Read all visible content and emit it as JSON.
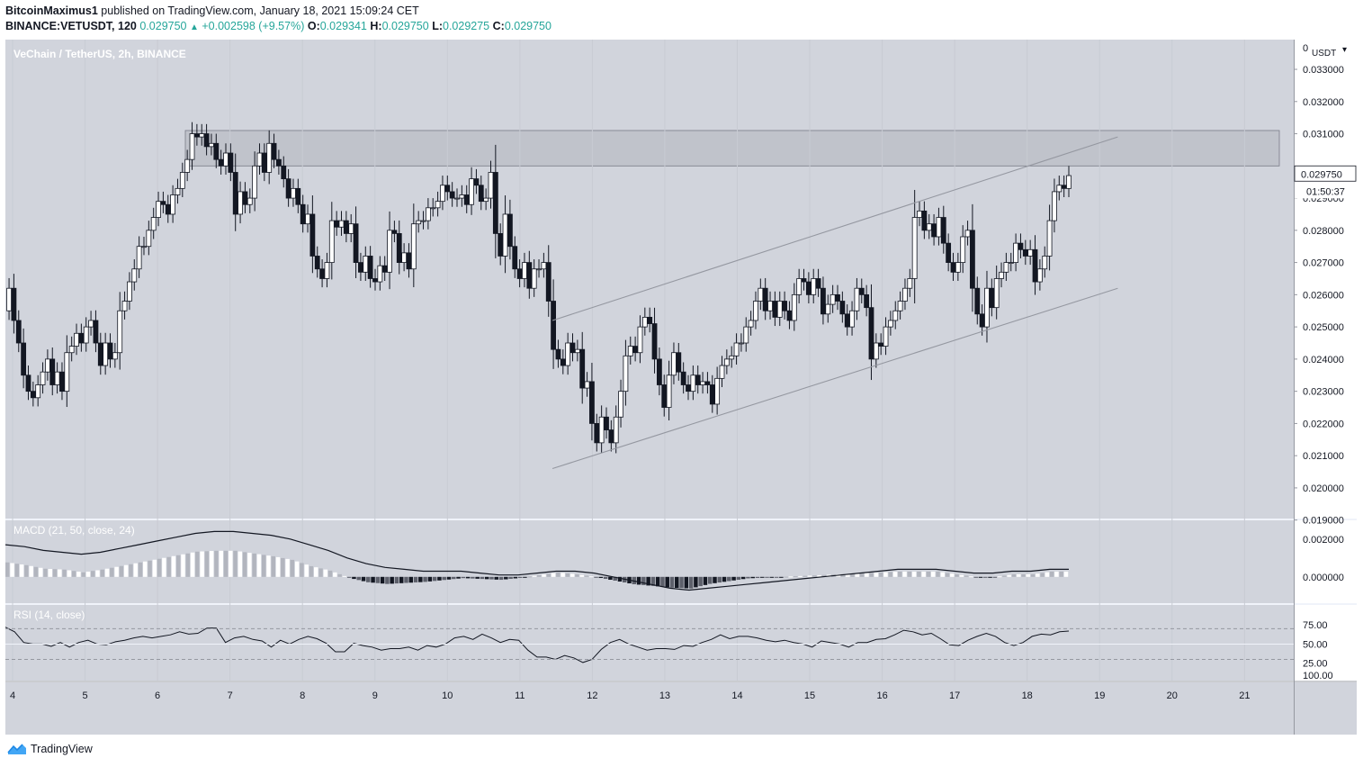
{
  "header": {
    "author": "BitcoinMaximus1",
    "published_text": "published on TradingView.com, January 18, 2021 15:09:24 CET",
    "symbol": "BINANCE:VETUSDT, 120",
    "last": "0.029750",
    "change": "+0.002598 (+9.57%)",
    "o_label": "O:",
    "o_value": "0.029341",
    "h_label": "H:",
    "h_value": "0.029750",
    "l_label": "L:",
    "l_value": "0.029275",
    "c_label": "C:",
    "c_value": "0.029750"
  },
  "chart_title": "VeChain / TetherUS, 2h, BINANCE",
  "price_axis": {
    "currency": "USDT",
    "top_label": "0",
    "ticks": [
      "0.033000",
      "0.032000",
      "0.031000",
      "0.029000",
      "0.028000",
      "0.027000",
      "0.026000",
      "0.025000",
      "0.024000",
      "0.023000",
      "0.022000",
      "0.021000",
      "0.020000",
      "0.019000"
    ],
    "last_price_label": "0.029750",
    "countdown_label": "01:50:37"
  },
  "footer": {
    "brand": "TradingView"
  },
  "colors": {
    "background": "#d1d4dc",
    "candle_up_fill": "#ffffff",
    "candle_down_fill": "#131722",
    "zone_fill": "#b2b5be",
    "channel": "#9598a1"
  },
  "chart_data": [
    {
      "type": "candlestick",
      "title": "VeChain / TetherUS, 2h, BINANCE",
      "x_tick_labels": [
        "4",
        "5",
        "6",
        "7",
        "8",
        "9",
        "10",
        "11",
        "12",
        "13",
        "14",
        "15",
        "16",
        "17",
        "18",
        "19",
        "20",
        "21"
      ],
      "y_range": [
        0.0186,
        0.0337
      ],
      "ohlc_closes": [
        0.0258,
        0.0262,
        0.0255,
        0.0262,
        0.0252,
        0.0245,
        0.0235,
        0.023,
        0.0228,
        0.0232,
        0.0236,
        0.024,
        0.0232,
        0.0236,
        0.023,
        0.0242,
        0.0244,
        0.0248,
        0.0245,
        0.025,
        0.0252,
        0.0245,
        0.0238,
        0.0245,
        0.024,
        0.0242,
        0.0255,
        0.0258,
        0.0264,
        0.0268,
        0.0275,
        0.0275,
        0.028,
        0.0284,
        0.0289,
        0.0288,
        0.0285,
        0.0291,
        0.0293,
        0.0298,
        0.0302,
        0.031,
        0.0309,
        0.031,
        0.0306,
        0.0307,
        0.0302,
        0.03,
        0.0304,
        0.0298,
        0.0285,
        0.0292,
        0.0288,
        0.029,
        0.03,
        0.0304,
        0.0298,
        0.0307,
        0.0302,
        0.03,
        0.0296,
        0.029,
        0.0293,
        0.0288,
        0.0282,
        0.0285,
        0.0272,
        0.0268,
        0.0265,
        0.027,
        0.0283,
        0.0281,
        0.0283,
        0.0279,
        0.0282,
        0.027,
        0.0267,
        0.0272,
        0.0265,
        0.0264,
        0.0269,
        0.0267,
        0.028,
        0.0279,
        0.027,
        0.0273,
        0.0268,
        0.0282,
        0.0283,
        0.0283,
        0.0287,
        0.0287,
        0.0289,
        0.0294,
        0.0292,
        0.029,
        0.029,
        0.0291,
        0.0288,
        0.0296,
        0.0294,
        0.0289,
        0.029,
        0.0298,
        0.0279,
        0.0272,
        0.0285,
        0.0275,
        0.0268,
        0.0265,
        0.027,
        0.0262,
        0.0268,
        0.0268,
        0.027,
        0.0258,
        0.0243,
        0.024,
        0.0238,
        0.0245,
        0.0242,
        0.0243,
        0.0231,
        0.0233,
        0.022,
        0.0214,
        0.0222,
        0.0218,
        0.0214,
        0.0222,
        0.023,
        0.0241,
        0.0244,
        0.0242,
        0.025,
        0.0253,
        0.0251,
        0.024,
        0.0232,
        0.0225,
        0.0235,
        0.0242,
        0.0236,
        0.0232,
        0.023,
        0.0235,
        0.0232,
        0.0233,
        0.0232,
        0.0226,
        0.0234,
        0.0238,
        0.024,
        0.0241,
        0.0245,
        0.0245,
        0.025,
        0.0252,
        0.0258,
        0.0262,
        0.0255,
        0.0258,
        0.0253,
        0.0258,
        0.0255,
        0.0252,
        0.026,
        0.0265,
        0.0264,
        0.026,
        0.0265,
        0.0262,
        0.0254,
        0.0257,
        0.026,
        0.0258,
        0.0254,
        0.025,
        0.0255,
        0.0262,
        0.026,
        0.0256,
        0.024,
        0.0245,
        0.0244,
        0.025,
        0.0252,
        0.0255,
        0.0258,
        0.0262,
        0.0265,
        0.0284,
        0.0286,
        0.028,
        0.0282,
        0.0278,
        0.0284,
        0.0276,
        0.027,
        0.0267,
        0.027,
        0.0278,
        0.028,
        0.0262,
        0.0254,
        0.025,
        0.0262,
        0.0256,
        0.0265,
        0.0267,
        0.027,
        0.027,
        0.0276,
        0.0274,
        0.0272,
        0.0274,
        0.0264,
        0.0268,
        0.0272,
        0.0283,
        0.0292,
        0.0294,
        0.0293,
        0.0297
      ],
      "resistance_zone": [
        0.03,
        0.0311
      ],
      "channel_upper": [
        [
          11.45,
          0.0252
        ],
        [
          19.25,
          0.0309
        ]
      ],
      "channel_lower": [
        [
          11.45,
          0.0206
        ],
        [
          19.25,
          0.0262
        ]
      ]
    },
    {
      "type": "line",
      "title": "MACD (21, 50, close, 24)",
      "ticks": [
        "0.002000",
        "0.000000"
      ],
      "y_range": [
        -0.0012,
        0.0028
      ],
      "macd": [
        0.0017,
        0.0016,
        0.0014,
        0.0013,
        0.0012,
        0.0013,
        0.0015,
        0.0017,
        0.0019,
        0.0021,
        0.0023,
        0.0024,
        0.0024,
        0.0023,
        0.0022,
        0.002,
        0.0017,
        0.0014,
        0.001,
        0.0007,
        0.0005,
        0.0004,
        0.0003,
        0.0003,
        0.0003,
        0.0002,
        0.0001,
        0.0001,
        0.0002,
        0.0003,
        0.0003,
        0.0002,
        0.0,
        -0.0002,
        -0.0004,
        -0.0006,
        -0.0007,
        -0.0006,
        -0.0005,
        -0.0004,
        -0.0003,
        -0.0002,
        -0.0001,
        0.0,
        0.0001,
        0.0002,
        0.0003,
        0.0004,
        0.0004,
        0.0004,
        0.0003,
        0.0002,
        0.0002,
        0.0003,
        0.0003,
        0.0004,
        0.0004
      ],
      "signal": [
        0.0017,
        0.0017,
        0.0016,
        0.0015,
        0.0015,
        0.0015,
        0.0016,
        0.0017,
        0.0018,
        0.0019,
        0.002,
        0.0021,
        0.0021,
        0.0021,
        0.0021,
        0.002,
        0.0019,
        0.0017,
        0.0015,
        0.0013,
        0.0011,
        0.0009,
        0.0007,
        0.0006,
        0.0005,
        0.0004,
        0.0003,
        0.0002,
        0.0002,
        0.0002,
        0.0003,
        0.0003,
        0.0002,
        0.0001,
        -0.0001,
        -0.0003,
        -0.0004,
        -0.0005,
        -0.0005,
        -0.0005,
        -0.0004,
        -0.0003,
        -0.0002,
        -0.0001,
        0.0,
        0.0001,
        0.0002,
        0.0003,
        0.0003,
        0.0003,
        0.0003,
        0.0003,
        0.0003,
        0.0003,
        0.0003,
        0.0003,
        0.0003
      ]
    },
    {
      "type": "line",
      "title": "RSI (14, close)",
      "ticks": [
        "75.00",
        "50.00",
        "25.00",
        "100.00"
      ],
      "levels": [
        70,
        30
      ],
      "y_range": [
        0,
        100
      ],
      "values": [
        72,
        66,
        52,
        50,
        50,
        47,
        52,
        46,
        52,
        55,
        50,
        49,
        53,
        55,
        58,
        60,
        58,
        60,
        62,
        66,
        63,
        64,
        71,
        71,
        52,
        58,
        60,
        56,
        54,
        46,
        55,
        50,
        56,
        60,
        57,
        51,
        40,
        40,
        51,
        48,
        46,
        42,
        44,
        44,
        46,
        42,
        48,
        46,
        50,
        58,
        60,
        56,
        63,
        58,
        52,
        56,
        55,
        42,
        33,
        33,
        30,
        35,
        32,
        26,
        30,
        43,
        52,
        56,
        50,
        46,
        42,
        44,
        44,
        43,
        48,
        47,
        52,
        56,
        62,
        57,
        60,
        60,
        58,
        55,
        53,
        55,
        52,
        50,
        46,
        54,
        52,
        50,
        46,
        52,
        52,
        56,
        57,
        62,
        68,
        66,
        62,
        64,
        57,
        49,
        48,
        55,
        60,
        64,
        60,
        52,
        48,
        52,
        60,
        63,
        62,
        66,
        67
      ]
    }
  ]
}
